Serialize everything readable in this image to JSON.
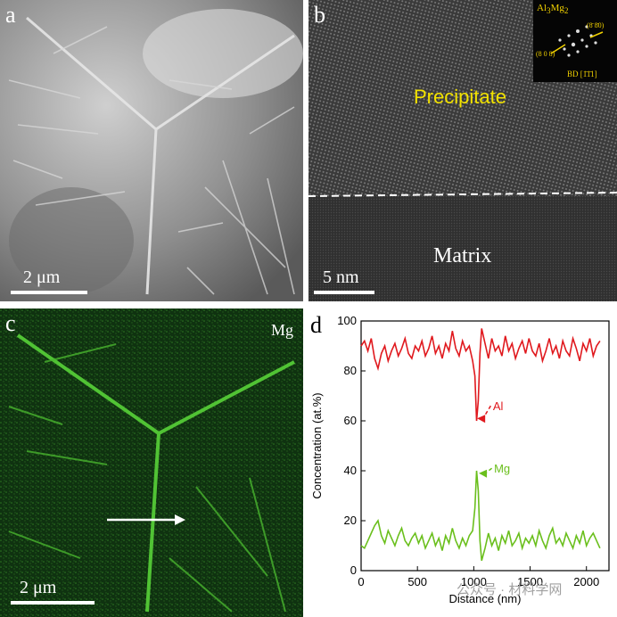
{
  "panel_a": {
    "label": "a",
    "scale": "2 μm"
  },
  "panel_b": {
    "label": "b",
    "scale": "5 nm",
    "precipitate": "Precipitate",
    "matrix": "Matrix",
    "inset": {
      "phase_base": "Al",
      "phase_sub1": "3",
      "phase_mid": "Mg",
      "phase_sub2": "2",
      "spot1": "(8̄ 8̄0)",
      "spot2": "(8 0 8)",
      "bd": "BD [1̄1̄1]"
    }
  },
  "panel_c": {
    "label": "c",
    "element": "Mg",
    "scale": "2 μm"
  },
  "panel_d": {
    "label": "d"
  },
  "watermark": "公众号 · 材料学网",
  "colors": {
    "al": "#e0191e",
    "mg": "#6abf1c",
    "inset_text": "#f2d200",
    "precip_text": "#f2e200"
  },
  "chart_data": {
    "type": "line",
    "xlabel": "Distance (nm)",
    "ylabel": "Concentration (at.%)",
    "xlim": [
      0,
      2200
    ],
    "ylim": [
      0,
      100
    ],
    "xticks": [
      0,
      500,
      1000,
      1500,
      2000
    ],
    "yticks": [
      0,
      20,
      40,
      60,
      80,
      100
    ],
    "annotations": [
      "Al",
      "Mg"
    ],
    "series": [
      {
        "name": "Al",
        "color": "#e0191e",
        "x": [
          0,
          30,
          60,
          90,
          120,
          150,
          180,
          210,
          240,
          270,
          300,
          330,
          360,
          390,
          420,
          450,
          480,
          510,
          540,
          570,
          600,
          630,
          660,
          690,
          720,
          750,
          780,
          810,
          840,
          870,
          900,
          930,
          960,
          990,
          1010,
          1025,
          1040,
          1055,
          1070,
          1100,
          1130,
          1160,
          1190,
          1220,
          1250,
          1280,
          1310,
          1340,
          1370,
          1400,
          1430,
          1460,
          1490,
          1520,
          1550,
          1580,
          1610,
          1640,
          1670,
          1700,
          1730,
          1760,
          1790,
          1820,
          1850,
          1880,
          1910,
          1940,
          1970,
          2000,
          2030,
          2060,
          2090,
          2120
        ],
        "y": [
          90,
          92,
          88,
          93,
          85,
          81,
          87,
          90,
          84,
          88,
          91,
          86,
          89,
          93,
          87,
          85,
          90,
          88,
          92,
          86,
          89,
          94,
          87,
          90,
          85,
          91,
          88,
          96,
          89,
          86,
          92,
          88,
          90,
          84,
          78,
          60,
          68,
          87,
          97,
          91,
          85,
          93,
          88,
          90,
          86,
          94,
          88,
          91,
          85,
          89,
          92,
          87,
          93,
          88,
          86,
          91,
          84,
          88,
          93,
          87,
          90,
          85,
          92,
          88,
          86,
          93,
          89,
          84,
          91,
          88,
          93,
          86,
          90,
          92
        ]
      },
      {
        "name": "Mg",
        "color": "#6abf1c",
        "x": [
          0,
          30,
          60,
          90,
          120,
          150,
          180,
          210,
          240,
          270,
          300,
          330,
          360,
          390,
          420,
          450,
          480,
          510,
          540,
          570,
          600,
          630,
          660,
          690,
          720,
          750,
          780,
          810,
          840,
          870,
          900,
          930,
          960,
          990,
          1010,
          1025,
          1040,
          1055,
          1070,
          1100,
          1130,
          1160,
          1190,
          1220,
          1250,
          1280,
          1310,
          1340,
          1370,
          1400,
          1430,
          1460,
          1490,
          1520,
          1550,
          1580,
          1610,
          1640,
          1670,
          1700,
          1730,
          1760,
          1790,
          1820,
          1850,
          1880,
          1910,
          1940,
          1970,
          2000,
          2030,
          2060,
          2090,
          2120
        ],
        "y": [
          10,
          9,
          12,
          15,
          18,
          20,
          14,
          11,
          16,
          13,
          10,
          14,
          17,
          12,
          10,
          13,
          15,
          11,
          14,
          9,
          12,
          15,
          10,
          13,
          8,
          14,
          11,
          17,
          12,
          9,
          13,
          10,
          14,
          16,
          25,
          40,
          32,
          12,
          4,
          9,
          15,
          10,
          13,
          8,
          14,
          11,
          16,
          10,
          12,
          15,
          9,
          13,
          11,
          14,
          10,
          16,
          12,
          9,
          14,
          17,
          11,
          13,
          10,
          15,
          12,
          9,
          14,
          11,
          16,
          10,
          13,
          15,
          12,
          9
        ]
      }
    ]
  }
}
